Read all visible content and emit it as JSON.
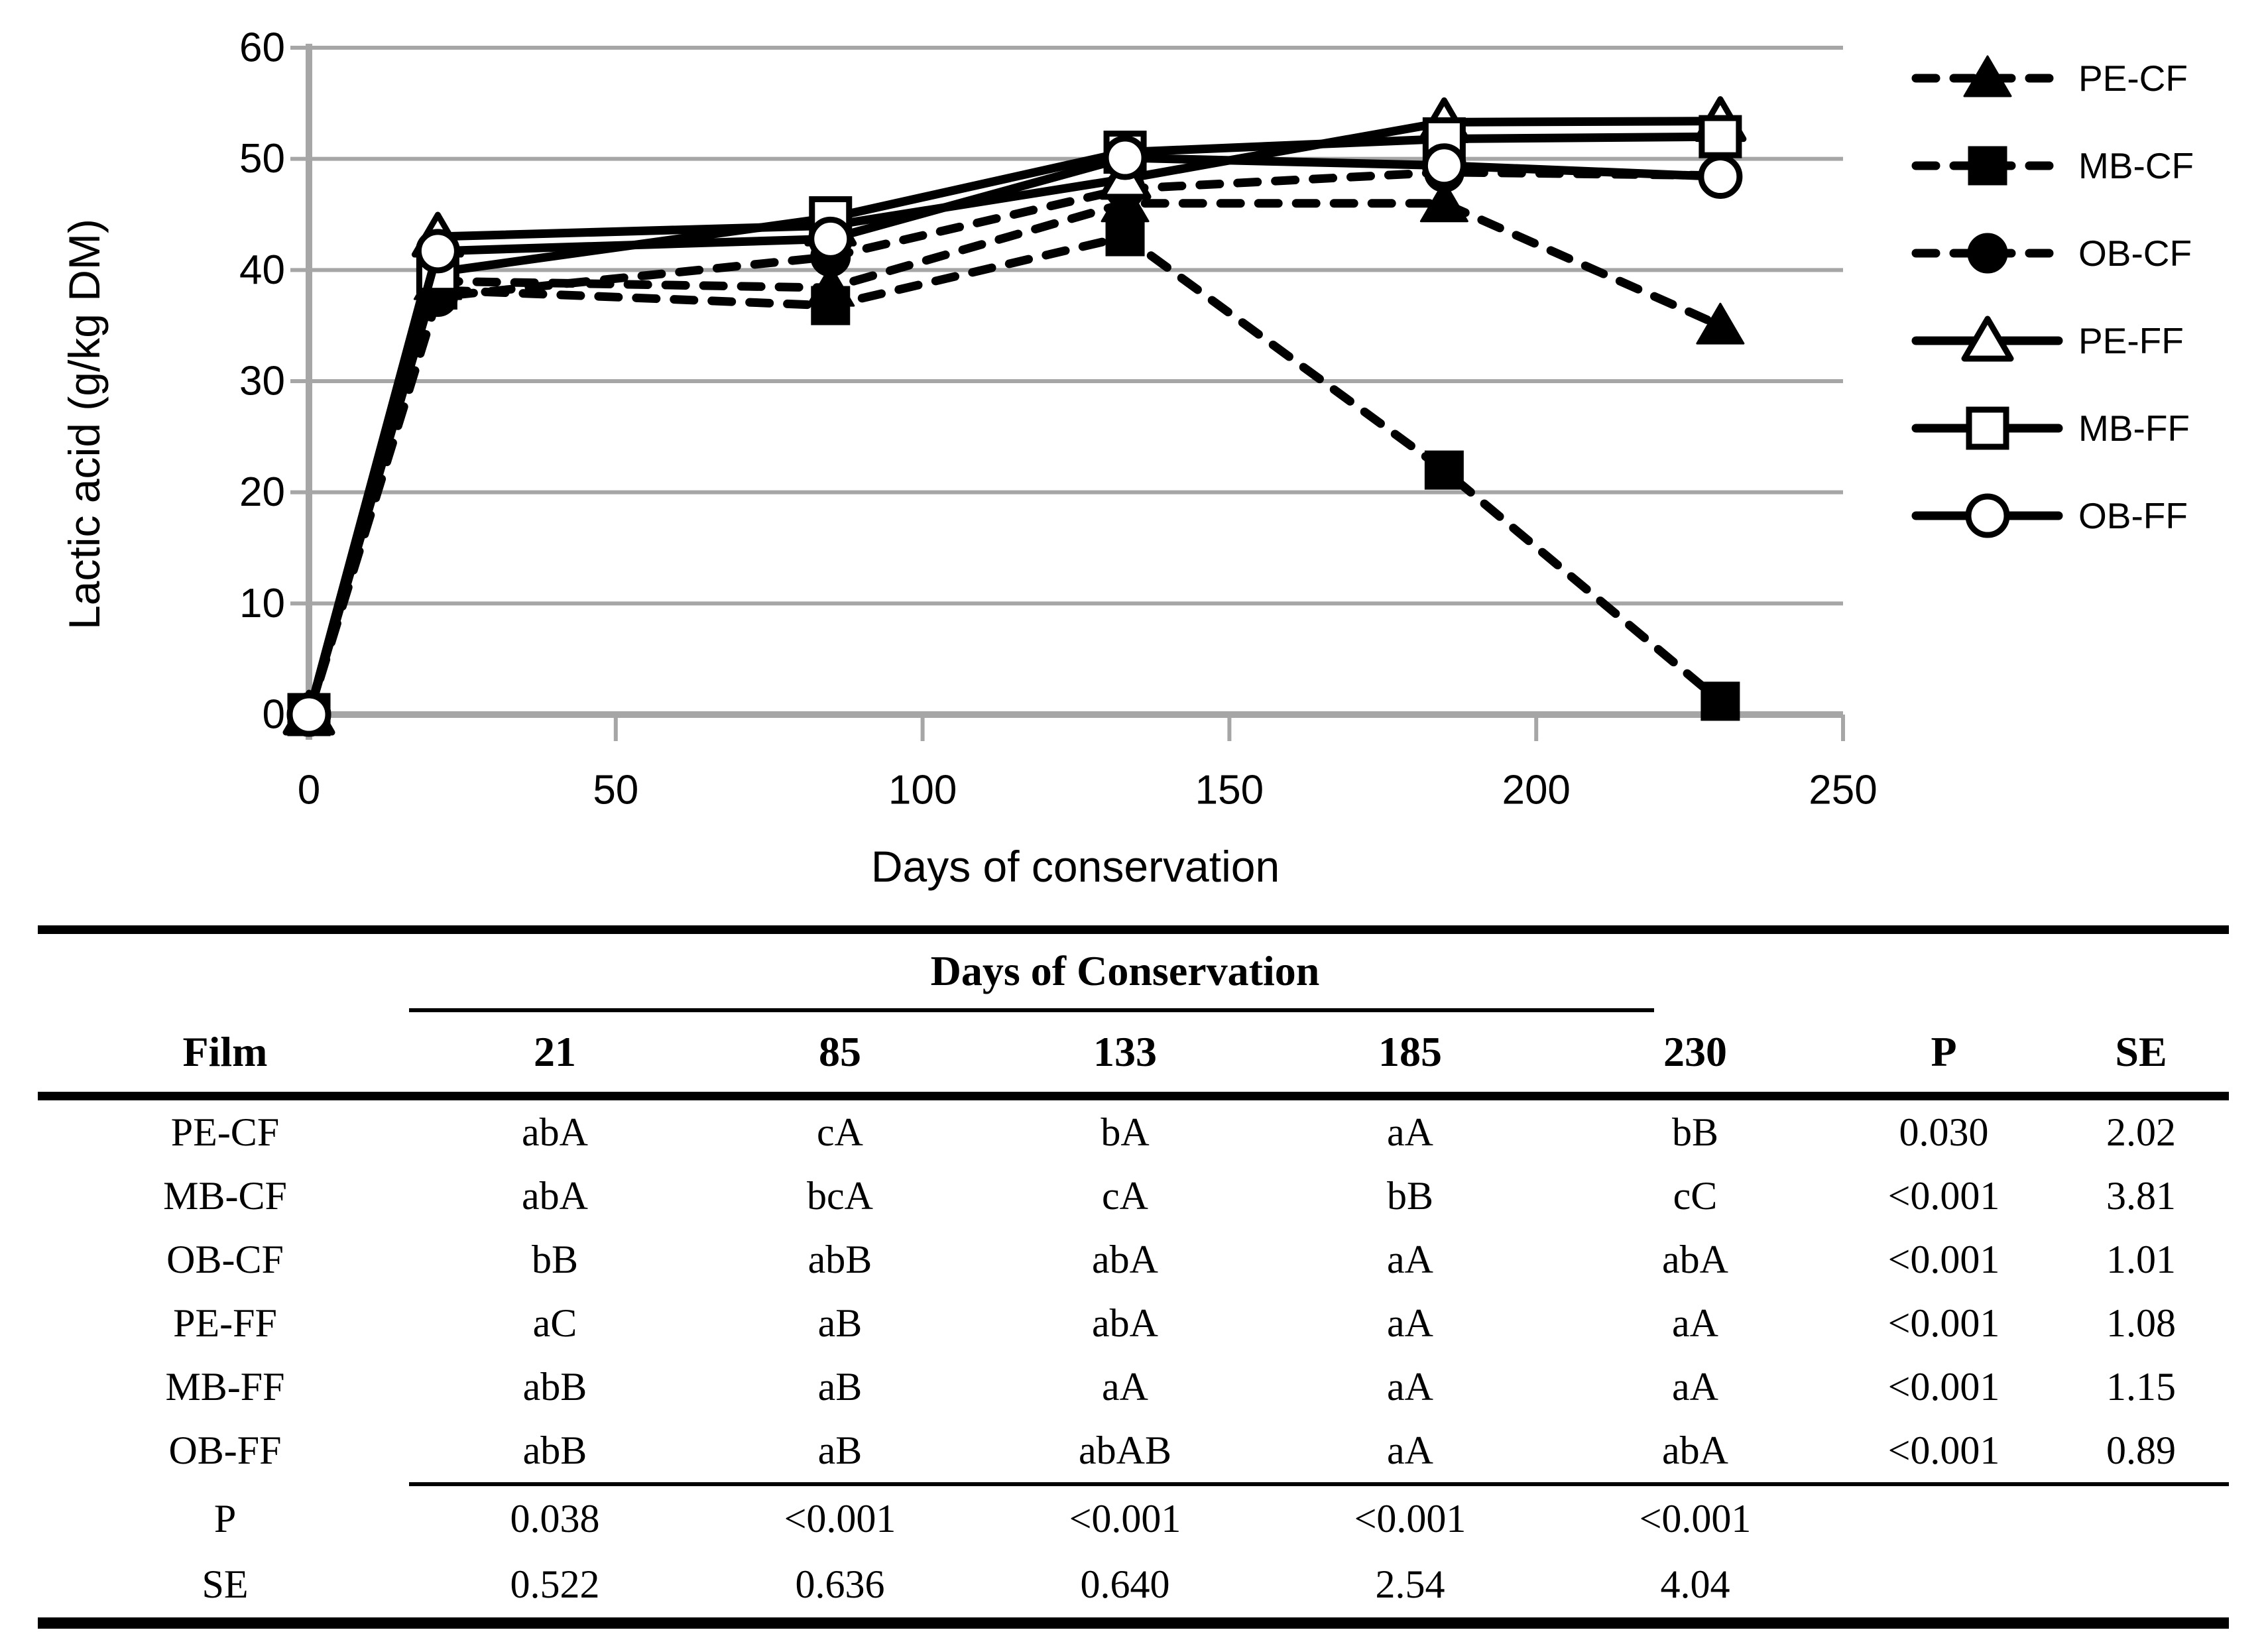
{
  "figure": {
    "y_axis": {
      "title": "Lactic acid (g/kg DM)",
      "ticks": [
        0,
        10,
        20,
        30,
        40,
        50,
        60
      ]
    },
    "x_axis": {
      "title": "Days of conservation",
      "ticks": [
        0,
        50,
        100,
        150,
        200,
        250
      ]
    }
  },
  "chart_data": {
    "type": "line",
    "x": [
      0,
      21,
      85,
      133,
      185,
      230
    ],
    "xlabel": "Days of conservation",
    "ylabel": "Lactic acid (g/kg DM)",
    "xlim": [
      0,
      250
    ],
    "ylim": [
      0,
      60
    ],
    "grid": true,
    "legend_position": "right",
    "series": [
      {
        "name": "PE-CF",
        "line": "dashed",
        "marker": "triangle",
        "marker_fill": "filled",
        "values": [
          0,
          39.0,
          38.4,
          46.0,
          46.0,
          35.0
        ]
      },
      {
        "name": "MB-CF",
        "line": "dashed",
        "marker": "square",
        "marker_fill": "filled",
        "values": [
          0,
          38.2,
          36.8,
          43.0,
          22.0,
          1.2
        ]
      },
      {
        "name": "OB-CF",
        "line": "dashed",
        "marker": "circle",
        "marker_fill": "filled",
        "values": [
          0,
          37.6,
          41.2,
          47.3,
          48.8,
          48.5
        ]
      },
      {
        "name": "PE-FF",
        "line": "solid",
        "marker": "triangle",
        "marker_fill": "open",
        "values": [
          0,
          43.0,
          44.0,
          48.2,
          53.3,
          53.4
        ]
      },
      {
        "name": "MB-FF",
        "line": "solid",
        "marker": "square",
        "marker_fill": "open",
        "values": [
          0,
          39.8,
          44.7,
          50.6,
          51.8,
          52.0
        ]
      },
      {
        "name": "OB-FF",
        "line": "solid",
        "marker": "circle",
        "marker_fill": "open",
        "values": [
          0,
          41.7,
          42.8,
          50.1,
          49.4,
          48.4
        ]
      }
    ]
  },
  "table": {
    "group_header": "Days of Conservation",
    "col_headers": [
      "Film",
      "21",
      "85",
      "133",
      "185",
      "230",
      "P",
      "SE"
    ],
    "rows": [
      {
        "film": "PE-CF",
        "values": [
          "abA",
          "cA",
          "bA",
          "aA",
          "bB"
        ],
        "p": "0.030",
        "se": "2.02"
      },
      {
        "film": "MB-CF",
        "values": [
          "abA",
          "bcA",
          "cA",
          "bB",
          "cC"
        ],
        "p": "<0.001",
        "se": "3.81"
      },
      {
        "film": "OB-CF",
        "values": [
          "bB",
          "abB",
          "abA",
          "aA",
          "abA"
        ],
        "p": "<0.001",
        "se": "1.01"
      },
      {
        "film": "PE-FF",
        "values": [
          "aC",
          "aB",
          "abA",
          "aA",
          "aA"
        ],
        "p": "<0.001",
        "se": "1.08"
      },
      {
        "film": "MB-FF",
        "values": [
          "abB",
          "aB",
          "aA",
          "aA",
          "aA"
        ],
        "p": "<0.001",
        "se": "1.15"
      },
      {
        "film": "OB-FF",
        "values": [
          "abB",
          "aB",
          "abAB",
          "aA",
          "abA"
        ],
        "p": "<0.001",
        "se": "0.89"
      }
    ],
    "footer_rows": [
      {
        "label": "P",
        "values": [
          "0.038",
          "<0.001",
          "<0.001",
          "<0.001",
          "<0.001"
        ]
      },
      {
        "label": "SE",
        "values": [
          "0.522",
          "0.636",
          "0.640",
          "2.54",
          "4.04"
        ]
      }
    ]
  },
  "colors": {
    "line": "#000000",
    "grid": "#A6A6A6",
    "text": "#000000",
    "background": "#FFFFFF"
  }
}
